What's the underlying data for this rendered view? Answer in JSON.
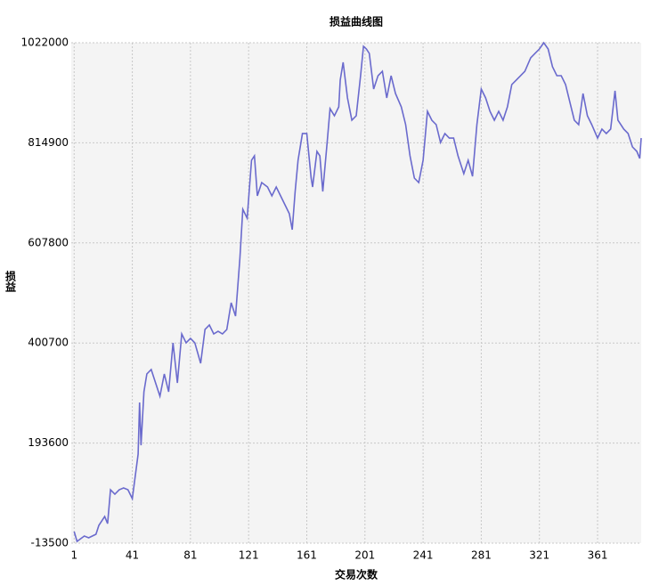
{
  "chart_data": {
    "type": "line",
    "title": "损益曲线图",
    "x_label": "交易次数",
    "y_label": "损益",
    "xlim": [
      -1,
      391
    ],
    "xticks": [
      1,
      41,
      81,
      121,
      161,
      201,
      241,
      281,
      321,
      361
    ],
    "ylim": [
      -13500,
      1022000
    ],
    "yticks": [
      -13500,
      193600,
      400700,
      607800,
      814900,
      1022000
    ],
    "grid": true,
    "series": [
      {
        "name": "损益",
        "color": "#6a6acd",
        "x": [
          1,
          3,
          8,
          11,
          16,
          18,
          22,
          24,
          26,
          29,
          32,
          35,
          38,
          41,
          45,
          46,
          47,
          49,
          51,
          54,
          57,
          60,
          63,
          66,
          69,
          72,
          75,
          78,
          81,
          84,
          88,
          91,
          94,
          97,
          100,
          103,
          106,
          109,
          112,
          115,
          117,
          120,
          123,
          125,
          127,
          130,
          134,
          137,
          140,
          143,
          146,
          149,
          151,
          153,
          155,
          158,
          161,
          164,
          165,
          168,
          170,
          172,
          175,
          177,
          180,
          183,
          184,
          186,
          189,
          192,
          195,
          198,
          200,
          202,
          204,
          207,
          210,
          213,
          216,
          219,
          222,
          226,
          229,
          232,
          235,
          238,
          241,
          244,
          247,
          250,
          253,
          256,
          259,
          262,
          265,
          269,
          272,
          275,
          278,
          281,
          284,
          287,
          290,
          293,
          296,
          299,
          302,
          305,
          308,
          311,
          315,
          318,
          321,
          324,
          327,
          330,
          333,
          336,
          339,
          342,
          345,
          348,
          351,
          354,
          357,
          361,
          364,
          367,
          370,
          373,
          375,
          379,
          382,
          385,
          388,
          390,
          391
        ],
        "values": [
          10400,
          -9900,
          1200,
          -2500,
          4900,
          23300,
          41700,
          27000,
          97000,
          87800,
          97000,
          100700,
          97000,
          78600,
          170700,
          277600,
          189100,
          299700,
          336600,
          345800,
          318100,
          290500,
          336600,
          299700,
          401000,
          318100,
          419500,
          401000,
          410300,
          401000,
          358700,
          428700,
          437900,
          419500,
          425000,
          419500,
          428700,
          484000,
          456300,
          576100,
          677400,
          659000,
          778800,
          788000,
          705100,
          732700,
          723500,
          705100,
          723500,
          705100,
          686600,
          668200,
          635100,
          714300,
          778800,
          834100,
          834100,
          741900,
          723500,
          797200,
          788000,
          714300,
          815600,
          885600,
          870900,
          889300,
          944600,
          981500,
          907800,
          861700,
          870900,
          953800,
          1014600,
          1009100,
          999900,
          926200,
          953800,
          963000,
          907800,
          953800,
          917000,
          889300,
          852500,
          788000,
          741900,
          732700,
          778800,
          880100,
          861700,
          852500,
          815600,
          834100,
          824800,
          824800,
          788000,
          751100,
          778800,
          745600,
          852500,
          926200,
          907800,
          880100,
          861700,
          880100,
          861700,
          889300,
          935400,
          944600,
          953800,
          963000,
          990700,
          999900,
          1009100,
          1022000,
          1009100,
          972300,
          953800,
          953800,
          935400,
          898500,
          861700,
          852500,
          917000,
          870900,
          852500,
          824800,
          843300,
          834100,
          843300,
          922500,
          861700,
          843300,
          834100,
          806400,
          797200,
          782500,
          824800
        ]
      }
    ]
  }
}
